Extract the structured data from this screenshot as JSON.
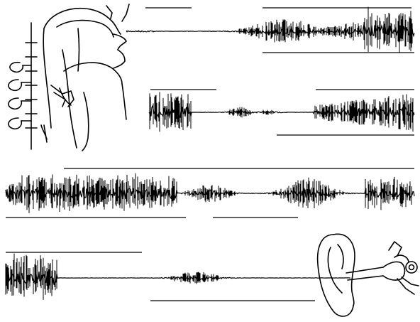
{
  "figure": {
    "description_visible_text": "",
    "ink_color": "#000000",
    "background_color": "#ffffff",
    "panels": [
      {
        "id": "trace-1",
        "icon": "vocal-tract-illustration"
      },
      {
        "id": "trace-2",
        "icon": "none"
      },
      {
        "id": "trace-3",
        "icon": "none"
      },
      {
        "id": "trace-4",
        "icon": "ear-illustration"
      }
    ]
  }
}
